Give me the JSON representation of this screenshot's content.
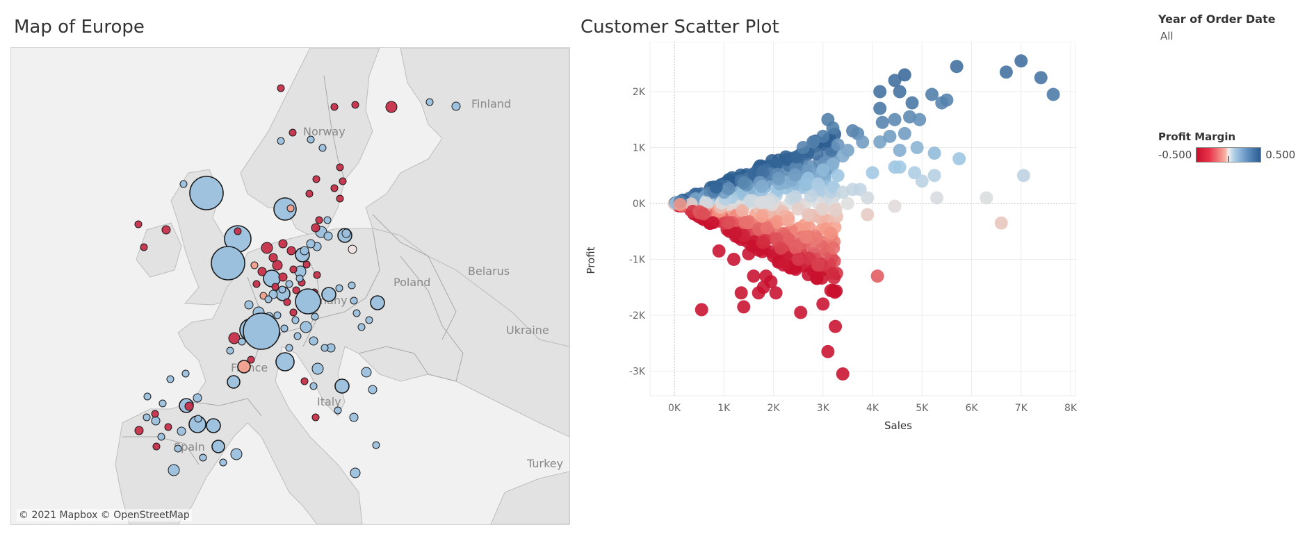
{
  "map": {
    "title": "Map of Europe",
    "credit": "© 2021 Mapbox © OpenStreetMap",
    "labels": [
      "Finland",
      "Norway",
      "Belarus",
      "Poland",
      "Ukraine",
      "Germany",
      "France",
      "Italy",
      "Spain",
      "Turkey"
    ]
  },
  "scatter": {
    "title": "Customer Scatter Plot"
  },
  "filter": {
    "label": "Year of Order Date",
    "value": "All"
  },
  "legend": {
    "title": "Profit Margin",
    "min": "-0.500",
    "max": "0.500"
  },
  "colors": {
    "neg": "#c8102e",
    "pos": "#2c5d91",
    "mid": "#e6e6e6",
    "land": "#e2e2e2",
    "water": "#f1f1f1"
  },
  "chart_data": {
    "type": "scatter",
    "title": "Customer Scatter Plot",
    "xlabel": "Sales",
    "ylabel": "Profit",
    "xlim": [
      -500,
      8200
    ],
    "ylim": [
      -3450,
      2650
    ],
    "x_ticks": [
      "0K",
      "1K",
      "2K",
      "3K",
      "4K",
      "5K",
      "6K",
      "7K",
      "8K"
    ],
    "y_ticks": [
      "2K",
      "1K",
      "0K",
      "-1K",
      "-2K",
      "-3K"
    ],
    "color_by": "Profit Margin",
    "points": [
      [
        5700,
        2450,
        0.45
      ],
      [
        6700,
        2350,
        0.44
      ],
      [
        7000,
        2550,
        0.45
      ],
      [
        7400,
        2250,
        0.43
      ],
      [
        7650,
        1950,
        0.41
      ],
      [
        4650,
        2300,
        0.46
      ],
      [
        4450,
        2200,
        0.45
      ],
      [
        4150,
        2000,
        0.44
      ],
      [
        4550,
        2000,
        0.44
      ],
      [
        4150,
        1700,
        0.42
      ],
      [
        4800,
        1800,
        0.42
      ],
      [
        5200,
        1950,
        0.4
      ],
      [
        5400,
        1800,
        0.38
      ],
      [
        5500,
        1850,
        0.38
      ],
      [
        4750,
        1550,
        0.36
      ],
      [
        4450,
        1500,
        0.36
      ],
      [
        4950,
        1500,
        0.34
      ],
      [
        4200,
        1450,
        0.38
      ],
      [
        4650,
        1250,
        0.3
      ],
      [
        4150,
        1100,
        0.28
      ],
      [
        4350,
        1200,
        0.3
      ],
      [
        4900,
        1000,
        0.22
      ],
      [
        4550,
        950,
        0.24
      ],
      [
        5250,
        900,
        0.2
      ],
      [
        5750,
        800,
        0.16
      ],
      [
        4450,
        650,
        0.16
      ],
      [
        4550,
        650,
        0.15
      ],
      [
        4850,
        550,
        0.12
      ],
      [
        4000,
        550,
        0.15
      ],
      [
        5000,
        400,
        0.09
      ],
      [
        5250,
        500,
        0.1
      ],
      [
        7050,
        500,
        0.08
      ],
      [
        3600,
        250,
        0.07
      ],
      [
        3750,
        250,
        0.07
      ],
      [
        3900,
        100,
        0.03
      ],
      [
        3500,
        0,
        0.0
      ],
      [
        5300,
        100,
        0.02
      ],
      [
        6300,
        100,
        0.01
      ],
      [
        4450,
        -50,
        -0.01
      ],
      [
        3900,
        -200,
        -0.05
      ],
      [
        6600,
        -350,
        -0.06
      ],
      [
        3100,
        1500,
        0.4
      ],
      [
        3200,
        1350,
        0.4
      ],
      [
        3600,
        1300,
        0.38
      ],
      [
        3700,
        1250,
        0.36
      ],
      [
        3000,
        1200,
        0.4
      ],
      [
        2800,
        1100,
        0.38
      ],
      [
        2600,
        1000,
        0.38
      ],
      [
        3300,
        1050,
        0.32
      ],
      [
        3500,
        950,
        0.28
      ],
      [
        3800,
        1100,
        0.3
      ],
      [
        3400,
        850,
        0.25
      ],
      [
        3200,
        700,
        0.22
      ],
      [
        3000,
        600,
        0.2
      ],
      [
        3300,
        500,
        0.16
      ],
      [
        2700,
        450,
        0.17
      ],
      [
        2900,
        350,
        0.12
      ],
      [
        3400,
        200,
        0.06
      ],
      [
        2500,
        -100,
        -0.04
      ],
      [
        2700,
        -200,
        -0.06
      ],
      [
        3000,
        -100,
        -0.03
      ],
      [
        2300,
        -300,
        -0.13
      ],
      [
        2650,
        -600,
        -0.23
      ],
      [
        2450,
        -800,
        -0.3
      ],
      [
        2150,
        -800,
        -0.37
      ],
      [
        2100,
        -1050,
        -0.5
      ],
      [
        2200,
        -1100,
        -0.48
      ],
      [
        2500,
        -1000,
        -0.4
      ],
      [
        2900,
        -1100,
        -0.38
      ],
      [
        4100,
        -1300,
        -0.32
      ],
      [
        1600,
        -1300,
        -0.8
      ],
      [
        1850,
        -1300,
        -0.7
      ],
      [
        1800,
        -1500,
        -0.8
      ],
      [
        1950,
        -1400,
        -0.7
      ],
      [
        1350,
        -1600,
        -1.1
      ],
      [
        1700,
        -1600,
        -0.9
      ],
      [
        2050,
        -1600,
        -0.8
      ],
      [
        1400,
        -1850,
        -1.3
      ],
      [
        550,
        -1900,
        -3.0
      ],
      [
        2550,
        -1950,
        -0.8
      ],
      [
        3000,
        -1800,
        -0.6
      ],
      [
        3250,
        -2200,
        -0.68
      ],
      [
        3100,
        -2650,
        -0.85
      ],
      [
        3400,
        -3050,
        -0.9
      ],
      [
        1200,
        -1000,
        -0.8
      ],
      [
        900,
        -850,
        -0.9
      ],
      [
        1500,
        -900,
        -0.6
      ]
    ]
  }
}
